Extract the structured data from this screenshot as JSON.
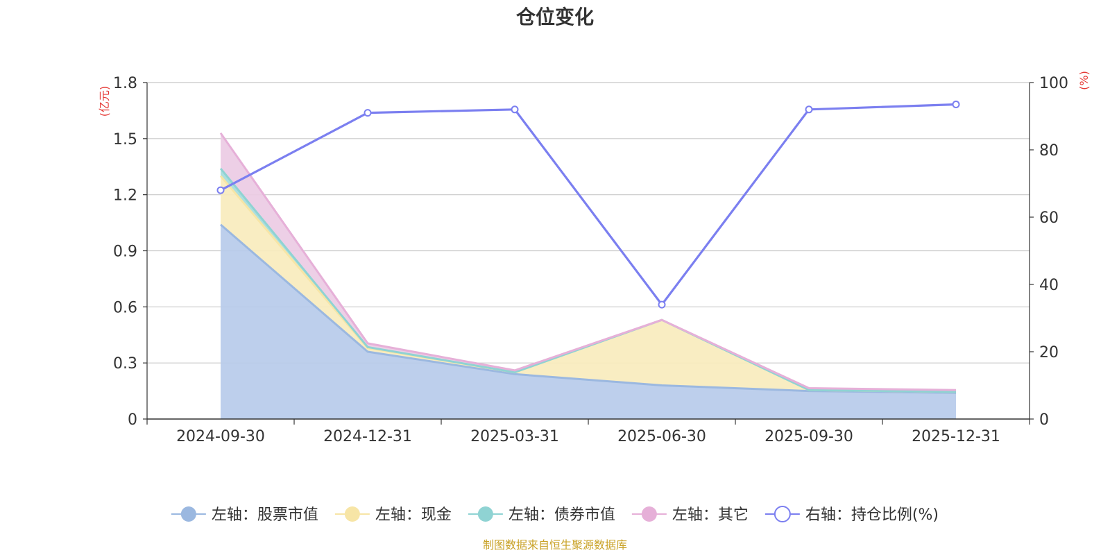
{
  "chart_data": {
    "type": "area",
    "title": "仓位变化",
    "left_unit": "(亿元)",
    "right_unit": "(%)",
    "categories": [
      "2024-09-30",
      "2024-12-31",
      "2025-03-31",
      "2025-06-30",
      "2025-09-30",
      "2025-12-31"
    ],
    "left_axis": {
      "min": 0,
      "max": 1.8,
      "ticks": [
        0,
        0.3,
        0.6,
        0.9,
        1.2,
        1.5,
        1.8
      ],
      "tick_labels": [
        "0",
        "0.3",
        "0.6",
        "0.9",
        "1.2",
        "1.5",
        "1.8"
      ]
    },
    "right_axis": {
      "min": 0,
      "max": 100,
      "ticks": [
        0,
        20,
        40,
        60,
        80,
        100
      ],
      "tick_labels": [
        "0",
        "20",
        "40",
        "60",
        "80",
        "100"
      ]
    },
    "stacked_series": [
      {
        "name": "左轴：股票市值",
        "color": "#9bb8e0",
        "fill": "#b7cbea",
        "values": [
          1.04,
          0.36,
          0.24,
          0.18,
          0.15,
          0.14
        ]
      },
      {
        "name": "左轴：现金",
        "color": "#f7e5a6",
        "fill": "#f9ecbd",
        "values": [
          0.26,
          0.02,
          0.01,
          0.35,
          0.005,
          0.005
        ]
      },
      {
        "name": "左轴：债券市值",
        "color": "#8fd3d3",
        "fill": "#a6dcdc",
        "values": [
          0.04,
          0.005,
          0.0,
          0.0,
          0.0,
          0.0
        ]
      },
      {
        "name": "左轴：其它",
        "color": "#e6b0d8",
        "fill": "#eccbe4",
        "values": [
          0.19,
          0.02,
          0.01,
          0.0,
          0.01,
          0.01
        ]
      }
    ],
    "line_series": {
      "name": "右轴：持仓比例(%)",
      "color": "#7b7ff0",
      "values": [
        68,
        91,
        92,
        34,
        92,
        93.5
      ]
    },
    "source_note": "制图数据来自恒生聚源数据库"
  }
}
